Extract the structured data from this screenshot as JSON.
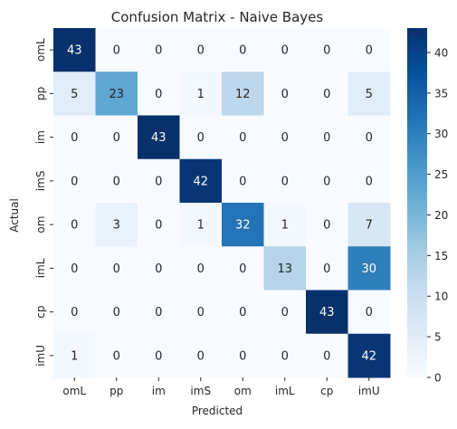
{
  "chart_data": {
    "type": "heatmap",
    "title": "Confusion Matrix - Naive Bayes",
    "xlabel": "Predicted",
    "ylabel": "Actual",
    "x_categories": [
      "omL",
      "pp",
      "im",
      "imS",
      "om",
      "imL",
      "cp",
      "imU"
    ],
    "y_categories": [
      "omL",
      "pp",
      "im",
      "imS",
      "om",
      "imL",
      "cp",
      "imU"
    ],
    "values": [
      [
        43,
        0,
        0,
        0,
        0,
        0,
        0,
        0
      ],
      [
        5,
        23,
        0,
        1,
        12,
        0,
        0,
        5
      ],
      [
        0,
        0,
        43,
        0,
        0,
        0,
        0,
        0
      ],
      [
        0,
        0,
        0,
        42,
        0,
        0,
        0,
        0
      ],
      [
        0,
        3,
        0,
        1,
        32,
        1,
        0,
        7
      ],
      [
        0,
        0,
        0,
        0,
        0,
        13,
        0,
        30
      ],
      [
        0,
        0,
        0,
        0,
        0,
        0,
        43,
        0
      ],
      [
        1,
        0,
        0,
        0,
        0,
        0,
        0,
        42
      ]
    ],
    "colormap": "Blues",
    "colorbar": {
      "min": 0,
      "max": 43,
      "ticks": [
        0,
        5,
        10,
        15,
        20,
        25,
        30,
        35,
        40
      ]
    },
    "annotated": true,
    "grid": false
  }
}
